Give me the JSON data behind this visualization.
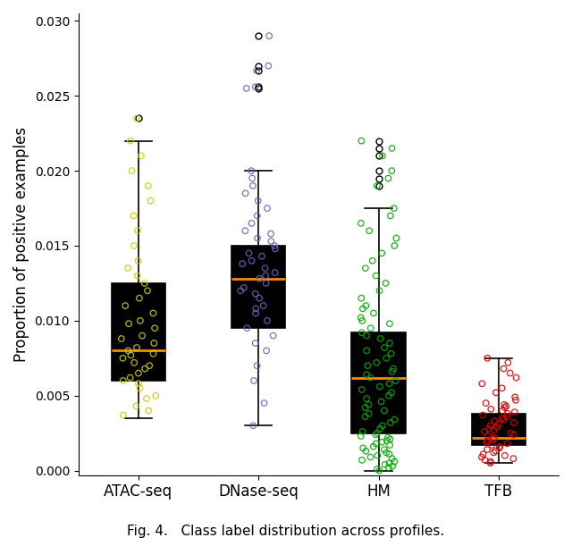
{
  "categories": [
    "ATAC-seq",
    "DNase-seq",
    "HM",
    "TFB"
  ],
  "colors": [
    "#cccc00",
    "#6666bb",
    "#00aa00",
    "#dd0000"
  ],
  "ylabel": "Proportion of positive examples",
  "title": "Fig. 4.   Class label distribution across profiles.",
  "ylim": [
    -0.0003,
    0.0305
  ],
  "yticks": [
    0.0,
    0.005,
    0.01,
    0.015,
    0.02,
    0.025,
    0.03
  ],
  "median_color": "#ff8800",
  "box_stats": {
    "ATAC-seq": {
      "q1": 0.006,
      "median": 0.008,
      "q3": 0.0125,
      "whislo": 0.0035,
      "whishi": 0.022,
      "fliers": [
        0.0235
      ]
    },
    "DNase-seq": {
      "q1": 0.0095,
      "median": 0.0128,
      "q3": 0.015,
      "whislo": 0.003,
      "whishi": 0.02,
      "fliers": [
        0.0255,
        0.0256,
        0.0267,
        0.027,
        0.029
      ]
    },
    "HM": {
      "q1": 0.0025,
      "median": 0.0062,
      "q3": 0.0092,
      "whislo": 0.0,
      "whishi": 0.0175,
      "fliers": [
        0.019,
        0.0195,
        0.02,
        0.021,
        0.0215,
        0.022
      ]
    },
    "TFB": {
      "q1": 0.0017,
      "median": 0.0022,
      "q3": 0.0038,
      "whislo": 0.0005,
      "whishi": 0.0075,
      "fliers": []
    }
  },
  "atac_seq": [
    0.0037,
    0.004,
    0.0043,
    0.0048,
    0.005,
    0.0055,
    0.0058,
    0.006,
    0.0062,
    0.0065,
    0.0068,
    0.007,
    0.0072,
    0.0075,
    0.0077,
    0.0078,
    0.008,
    0.0082,
    0.0085,
    0.0088,
    0.009,
    0.0095,
    0.0098,
    0.01,
    0.0105,
    0.011,
    0.0115,
    0.012,
    0.0125,
    0.013,
    0.0135,
    0.014,
    0.015,
    0.016,
    0.017,
    0.018,
    0.019,
    0.02,
    0.021,
    0.022,
    0.0235
  ],
  "dnase_seq": [
    0.003,
    0.0045,
    0.006,
    0.007,
    0.008,
    0.0085,
    0.009,
    0.0095,
    0.01,
    0.0105,
    0.0108,
    0.011,
    0.0115,
    0.0118,
    0.012,
    0.0122,
    0.0125,
    0.0128,
    0.013,
    0.0132,
    0.0135,
    0.0138,
    0.014,
    0.0143,
    0.0145,
    0.0148,
    0.015,
    0.0153,
    0.0155,
    0.0158,
    0.016,
    0.0165,
    0.017,
    0.0175,
    0.018,
    0.0185,
    0.019,
    0.0195,
    0.02,
    0.0255,
    0.0256,
    0.0267,
    0.027,
    0.029
  ],
  "hm": [
    0.0,
    0.0001,
    0.0002,
    0.0003,
    0.0004,
    0.0005,
    0.0006,
    0.0007,
    0.0008,
    0.0009,
    0.001,
    0.0011,
    0.0012,
    0.0013,
    0.0014,
    0.0015,
    0.0016,
    0.0017,
    0.0018,
    0.0019,
    0.002,
    0.0021,
    0.0022,
    0.0023,
    0.0024,
    0.0025,
    0.0026,
    0.0028,
    0.003,
    0.0032,
    0.0034,
    0.0036,
    0.0038,
    0.004,
    0.0042,
    0.0044,
    0.0046,
    0.0048,
    0.005,
    0.0052,
    0.0054,
    0.0056,
    0.0058,
    0.006,
    0.0062,
    0.0064,
    0.0066,
    0.0068,
    0.007,
    0.0072,
    0.0075,
    0.0078,
    0.008,
    0.0082,
    0.0085,
    0.0088,
    0.009,
    0.0092,
    0.0095,
    0.0098,
    0.01,
    0.0102,
    0.0105,
    0.0108,
    0.011,
    0.0115,
    0.012,
    0.0125,
    0.013,
    0.0135,
    0.014,
    0.0145,
    0.015,
    0.0155,
    0.016,
    0.0165,
    0.017,
    0.0175,
    0.019,
    0.0195,
    0.02,
    0.021,
    0.0215,
    0.022
  ],
  "tfb": [
    0.0005,
    0.0006,
    0.0007,
    0.0008,
    0.0009,
    0.001,
    0.0011,
    0.0012,
    0.0013,
    0.0014,
    0.0015,
    0.0016,
    0.0017,
    0.0018,
    0.0019,
    0.002,
    0.0021,
    0.0022,
    0.0023,
    0.0024,
    0.0025,
    0.0026,
    0.0027,
    0.0028,
    0.0029,
    0.003,
    0.0031,
    0.0032,
    0.0033,
    0.0034,
    0.0035,
    0.0036,
    0.0037,
    0.0038,
    0.0039,
    0.004,
    0.0041,
    0.0042,
    0.0043,
    0.0044,
    0.0045,
    0.0047,
    0.0049,
    0.0052,
    0.0055,
    0.0058,
    0.0062,
    0.0065,
    0.0068,
    0.0072,
    0.0075
  ]
}
